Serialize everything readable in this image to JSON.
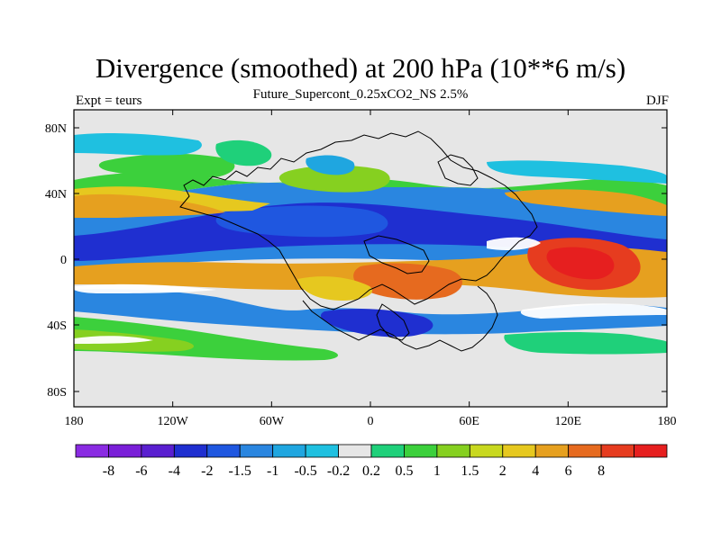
{
  "title": "Divergence (smoothed) at 200 hPa (10**6 m/s)",
  "subtitle": "Future_Supercont_0.25xCO2_NS 2.5%",
  "left_label": "Expt = teurs",
  "right_label": "DJF",
  "lat_ticks": [
    "80N",
    "40N",
    "0",
    "40S",
    "80S"
  ],
  "lon_ticks": [
    "180",
    "120W",
    "60W",
    "0",
    "60E",
    "120E",
    "180"
  ],
  "colorbar": {
    "colors": [
      "#8a2be2",
      "#7a1fd8",
      "#5a1fd0",
      "#1f2fd0",
      "#1f57e0",
      "#2a86e0",
      "#1fa6e0",
      "#1fc0e0",
      "#e6e6e6",
      "#1fd07a",
      "#3cd03c",
      "#86d020",
      "#c8d81f",
      "#e6c81f",
      "#e6a01f",
      "#e66a1f",
      "#e63c1f",
      "#e61f1f"
    ],
    "labels": [
      "-8",
      "-6",
      "-4",
      "-2",
      "-1.5",
      "-1",
      "-0.5",
      "-0.2",
      "0.2",
      "0.5",
      "1",
      "1.5",
      "2",
      "4",
      "6",
      "8"
    ]
  }
}
